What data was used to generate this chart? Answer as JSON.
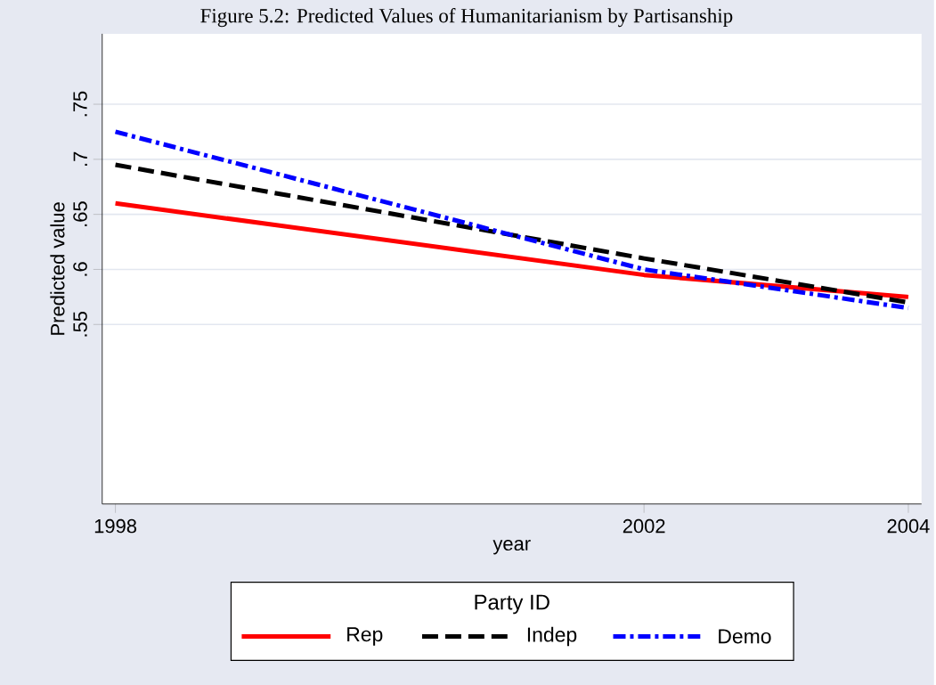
{
  "chart_data": {
    "type": "line",
    "title": "Figure 5.2: Predicted Values of Humanitarianism by Partisanship",
    "xlabel": "year",
    "ylabel": "Predicted value",
    "legend_title": "Party ID",
    "x": [
      1998,
      2002,
      2004
    ],
    "series": [
      {
        "name": "Rep",
        "color": "#ff0000",
        "line_style": "solid",
        "values": [
          0.66,
          0.595,
          0.575
        ]
      },
      {
        "name": "Indep",
        "color": "#000000",
        "line_style": "dashed",
        "values": [
          0.695,
          0.61,
          0.57
        ]
      },
      {
        "name": "Demo",
        "color": "#0000ff",
        "line_style": "dashdot",
        "values": [
          0.725,
          0.6,
          0.565
        ]
      }
    ],
    "xlim": [
      1997.9,
      2004.1
    ],
    "ylim": [
      0.387,
      0.814
    ],
    "xticks": [
      1998,
      2002,
      2004
    ],
    "yticks": [
      {
        "value": 0.55,
        "label": ".55"
      },
      {
        "value": 0.6,
        "label": ".6"
      },
      {
        "value": 0.65,
        "label": ".65"
      },
      {
        "value": 0.7,
        "label": ".7"
      },
      {
        "value": 0.75,
        "label": ".75"
      }
    ],
    "grid": "y",
    "legend": "bottom",
    "marker": "none"
  }
}
